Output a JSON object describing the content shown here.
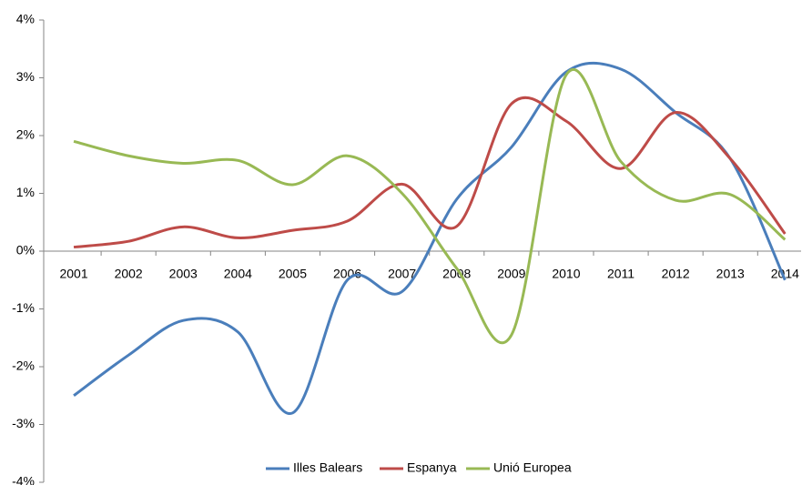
{
  "chart_data": {
    "type": "line",
    "categories": [
      "2001",
      "2002",
      "2003",
      "2004",
      "2005",
      "2006",
      "2007",
      "2008",
      "2009",
      "2010",
      "2011",
      "2012",
      "2013",
      "2014"
    ],
    "series": [
      {
        "name": "Illes Balears",
        "color": "#4a7ebb",
        "values": [
          -2.5,
          -1.8,
          -1.2,
          -1.4,
          -2.8,
          -0.5,
          -0.7,
          0.9,
          1.8,
          3.1,
          3.15,
          2.4,
          1.6,
          -0.5
        ]
      },
      {
        "name": "Espanya",
        "color": "#be4b48",
        "values": [
          0.07,
          0.17,
          0.42,
          0.23,
          0.36,
          0.52,
          1.16,
          0.43,
          2.55,
          2.25,
          1.43,
          2.4,
          1.6,
          0.3
        ]
      },
      {
        "name": "Unió Europea",
        "color": "#98b954",
        "values": [
          1.9,
          1.65,
          1.52,
          1.57,
          1.15,
          1.65,
          1.0,
          -0.3,
          -1.45,
          3.05,
          1.55,
          0.88,
          0.98,
          0.2
        ]
      }
    ],
    "ylim": [
      -4,
      4
    ],
    "yticks": [
      {
        "value": -4,
        "label": "-4%"
      },
      {
        "value": -3,
        "label": "-3%"
      },
      {
        "value": -2,
        "label": "-2%"
      },
      {
        "value": -1,
        "label": "-1%"
      },
      {
        "value": 0,
        "label": "0%"
      },
      {
        "value": 1,
        "label": "1%"
      },
      {
        "value": 2,
        "label": "2%"
      },
      {
        "value": 3,
        "label": "3%"
      },
      {
        "value": 4,
        "label": "4%"
      }
    ],
    "legend": "bottom"
  }
}
